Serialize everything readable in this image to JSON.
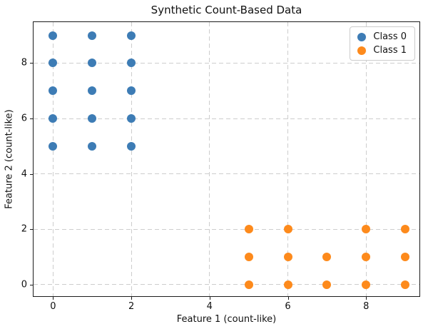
{
  "chart_data": {
    "type": "scatter",
    "title": "Synthetic Count-Based Data",
    "xlabel": "Feature 1 (count-like)",
    "ylabel": "Feature 2 (count-like)",
    "xlim": [
      -0.5,
      9.4
    ],
    "ylim": [
      -0.47,
      9.48
    ],
    "xticks": [
      0,
      2,
      4,
      6,
      8
    ],
    "yticks": [
      0,
      2,
      4,
      6,
      8
    ],
    "grid": true,
    "grid_style": "dashed",
    "grid_color": "#cdcdcd",
    "legend_position": "upper right",
    "marker_size_px": 12,
    "series": [
      {
        "name": "Class 0",
        "color": "#3d7cb5",
        "points": [
          [
            0,
            9
          ],
          [
            1,
            9
          ],
          [
            2,
            9
          ],
          [
            0,
            8
          ],
          [
            1,
            8
          ],
          [
            2,
            8
          ],
          [
            0,
            7
          ],
          [
            1,
            7
          ],
          [
            2,
            7
          ],
          [
            0,
            6
          ],
          [
            1,
            6
          ],
          [
            2,
            6
          ],
          [
            0,
            5
          ],
          [
            1,
            5
          ],
          [
            2,
            5
          ]
        ]
      },
      {
        "name": "Class 1",
        "color": "#fd8a1c",
        "points": [
          [
            5,
            2
          ],
          [
            6,
            2
          ],
          [
            8,
            2
          ],
          [
            9,
            2
          ],
          [
            5,
            1
          ],
          [
            6,
            1
          ],
          [
            7,
            1
          ],
          [
            8,
            1
          ],
          [
            9,
            1
          ],
          [
            5,
            0
          ],
          [
            6,
            0
          ],
          [
            7,
            0
          ],
          [
            8,
            0
          ],
          [
            9,
            0
          ]
        ]
      }
    ]
  },
  "legend": {
    "items": [
      {
        "label": "Class 0",
        "color": "#3d7cb5"
      },
      {
        "label": "Class 1",
        "color": "#fd8a1c"
      }
    ]
  }
}
